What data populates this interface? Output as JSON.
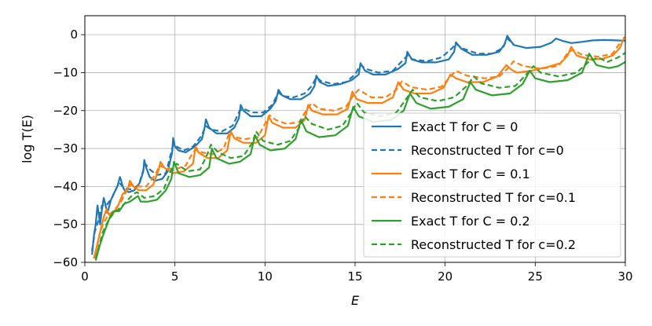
{
  "chart_data": {
    "type": "line",
    "xlabel": "E",
    "ylabel": "log T(E)",
    "xlim": [
      0,
      30
    ],
    "ylim": [
      -60,
      5
    ],
    "xticks": [
      0,
      5,
      10,
      15,
      20,
      25,
      30
    ],
    "yticks": [
      0,
      -10,
      -20,
      -30,
      -40,
      -50,
      -60
    ],
    "xtick_labels": [
      "0",
      "5",
      "10",
      "15",
      "20",
      "25",
      "30"
    ],
    "ytick_labels": [
      "0",
      "−10",
      "−20",
      "−30",
      "−40",
      "−50",
      "−60"
    ],
    "grid": true,
    "legend_position": "lower-right",
    "legend": [
      {
        "key": "exact0",
        "label": "Exact T for C = 0"
      },
      {
        "key": "recon0",
        "label": "Reconstructed T for c=0"
      },
      {
        "key": "exact1",
        "label": "Exact T for C = 0.1"
      },
      {
        "key": "recon1",
        "label": "Reconstructed T for c=0.1"
      },
      {
        "key": "exact2",
        "label": "Exact T for C = 0.2"
      },
      {
        "key": "recon2",
        "label": "Reconstructed T for c=0.2"
      }
    ],
    "colors": {
      "blue": "#1f77b4",
      "orange": "#ff7f0e",
      "green": "#2ca02c"
    },
    "series": [
      {
        "key": "exact0",
        "color": "#1f77b4",
        "dashed": false,
        "x": [
          0.4,
          0.5,
          0.6,
          0.7,
          0.85,
          0.95,
          1.05,
          1.15,
          1.25,
          1.45,
          1.65,
          1.8,
          1.95,
          2.0,
          2.1,
          2.2,
          2.45,
          2.75,
          3.05,
          3.25,
          3.3,
          3.4,
          3.6,
          3.9,
          4.3,
          4.6,
          4.85,
          4.9,
          5.0,
          5.2,
          5.6,
          6.1,
          6.5,
          6.65,
          6.72,
          6.9,
          7.3,
          7.9,
          8.3,
          8.55,
          8.65,
          8.8,
          9.2,
          9.8,
          10.3,
          10.6,
          10.75,
          10.95,
          11.4,
          12.0,
          12.5,
          12.75,
          12.85,
          13.05,
          13.5,
          14.2,
          14.8,
          15.2,
          15.3,
          15.55,
          16.0,
          16.7,
          17.4,
          17.8,
          17.9,
          18.15,
          18.7,
          19.5,
          20.2,
          20.5,
          20.6,
          20.9,
          21.5,
          22.3,
          23.0,
          23.3,
          23.45,
          23.8,
          24.5,
          25.3,
          25.9,
          26.15,
          26.5,
          27.0,
          27.6,
          28.2,
          28.8,
          29.5,
          30.0
        ],
        "y": [
          -58,
          -53,
          -50,
          -45,
          -50,
          -46,
          -43,
          -45,
          -47,
          -43.5,
          -41.5,
          -40,
          -37.5,
          -38.2,
          -40,
          -41,
          -41.5,
          -41,
          -39,
          -36,
          -33,
          -35,
          -37.5,
          -38.5,
          -38,
          -36,
          -31,
          -27.2,
          -29.5,
          -30.5,
          -31,
          -29.5,
          -27.5,
          -24.5,
          -22.3,
          -24.5,
          -26,
          -26,
          -24.5,
          -22,
          -18.5,
          -20,
          -21.5,
          -21.5,
          -19.5,
          -17.5,
          -14.5,
          -16,
          -17,
          -17,
          -15.5,
          -13.5,
          -10.8,
          -12.5,
          -13.5,
          -13,
          -12,
          -10.5,
          -7.5,
          -9.5,
          -10.5,
          -10.5,
          -9,
          -7.5,
          -4.5,
          -6.5,
          -7.3,
          -7.3,
          -6.5,
          -4.5,
          -2,
          -3.7,
          -5.3,
          -5.3,
          -4.5,
          -2.5,
          -0.3,
          -2.7,
          -3.5,
          -3.2,
          -2.1,
          -1,
          -1.6,
          -2.2,
          -1.9,
          -1.5,
          -1.4,
          -1.5,
          -1.6
        ]
      },
      {
        "key": "recon0",
        "color": "#1f77b4",
        "dashed": true,
        "x": [
          0.4,
          0.55,
          0.75,
          0.95,
          1.2,
          1.5,
          1.9,
          2.2,
          2.6,
          3.0,
          3.35,
          3.6,
          4.0,
          4.5,
          4.9,
          5.1,
          5.5,
          6.0,
          6.5,
          6.7,
          7.0,
          7.6,
          8.2,
          8.6,
          8.8,
          9.3,
          9.9,
          10.4,
          10.75,
          11.0,
          11.6,
          12.2,
          12.6,
          12.85,
          13.1,
          13.8,
          14.5,
          15.0,
          15.3,
          15.6,
          16.3,
          17.1,
          17.7,
          17.9,
          18.2,
          19.0,
          19.8,
          20.4,
          20.6,
          20.9,
          21.8,
          22.6,
          23.2,
          23.45,
          23.8
        ],
        "y": [
          -57,
          -52,
          -49,
          -45,
          -45,
          -43,
          -39,
          -40.5,
          -40.8,
          -39.5,
          -34,
          -35.5,
          -37,
          -36.5,
          -29,
          -29.5,
          -30.5,
          -29.5,
          -26.5,
          -24,
          -25,
          -25.5,
          -24,
          -20,
          -19.5,
          -20.5,
          -20.5,
          -18.5,
          -15.2,
          -16.2,
          -16.5,
          -15.5,
          -13.5,
          -11.2,
          -12.2,
          -13,
          -12.5,
          -10.5,
          -8,
          -9,
          -10,
          -9.5,
          -6.5,
          -5.5,
          -6.5,
          -7,
          -6,
          -3.5,
          -2.3,
          -3.5,
          -5,
          -5,
          -3.5,
          -1,
          -2.5
        ]
      },
      {
        "key": "exact1",
        "color": "#ff7f0e",
        "dashed": false,
        "x": [
          0.5,
          0.7,
          0.9,
          1.05,
          1.2,
          1.35,
          1.6,
          1.85,
          2.1,
          2.4,
          2.5,
          2.7,
          3.0,
          3.4,
          3.8,
          4.1,
          4.2,
          4.4,
          4.9,
          5.5,
          6.0,
          6.15,
          6.3,
          6.8,
          7.4,
          7.9,
          8.1,
          8.3,
          8.8,
          9.5,
          10.0,
          10.2,
          10.4,
          11.0,
          11.7,
          12.2,
          12.4,
          12.6,
          13.2,
          14.0,
          14.6,
          14.85,
          15.1,
          15.7,
          16.5,
          17.1,
          17.4,
          17.7,
          18.3,
          19.2,
          19.9,
          20.3,
          20.6,
          21.2,
          22.1,
          22.9,
          23.4,
          23.7,
          24.0,
          24.8,
          25.7,
          26.4,
          26.8,
          27.0,
          27.3,
          28.0,
          28.7,
          29.3,
          29.7,
          29.95
        ],
        "y": [
          -59,
          -55,
          -51,
          -48,
          -46,
          -47.5,
          -47,
          -45,
          -42,
          -40.5,
          -38.5,
          -40,
          -41,
          -41,
          -39.5,
          -35.5,
          -33.5,
          -35,
          -36.5,
          -36,
          -34,
          -29.5,
          -31,
          -32.5,
          -32.5,
          -30.5,
          -25.5,
          -27.3,
          -28.5,
          -28.5,
          -26.5,
          -21.5,
          -23.2,
          -24.5,
          -24.5,
          -22.5,
          -18.5,
          -20,
          -21,
          -21,
          -19.5,
          -15,
          -17,
          -18,
          -18,
          -16.5,
          -12.5,
          -14.5,
          -15.5,
          -15.5,
          -14,
          -10.5,
          -11.5,
          -12.5,
          -12.5,
          -11,
          -8,
          -9.3,
          -10,
          -9.5,
          -8.5,
          -7.5,
          -5.5,
          -3.2,
          -5.5,
          -6.5,
          -6.4,
          -5.5,
          -3.5,
          -0.5
        ]
      },
      {
        "key": "recon1",
        "color": "#ff7f0e",
        "dashed": true,
        "x": [
          0.6,
          0.8,
          1.0,
          1.3,
          1.6,
          2.0,
          2.4,
          2.55,
          2.9,
          3.4,
          3.9,
          4.15,
          4.4,
          5.0,
          5.6,
          6.0,
          6.15,
          6.5,
          7.1,
          7.7,
          8.05,
          8.3,
          8.9,
          9.6,
          10.0,
          10.25,
          10.6,
          11.2,
          11.9,
          12.35,
          12.6,
          13.0,
          13.8,
          14.5,
          14.9,
          15.2,
          15.9,
          16.7,
          17.3,
          17.6,
          18.1,
          19.0,
          19.8,
          20.3,
          20.6,
          21.2,
          22.2,
          23.0,
          23.5,
          23.8,
          24.3,
          25.3,
          26.3,
          26.85,
          27.1,
          27.6,
          28.5,
          29.3,
          29.8
        ],
        "y": [
          -58,
          -53,
          -50,
          -47.5,
          -46.5,
          -44,
          -40.5,
          -39.5,
          -40,
          -40,
          -37,
          -34.5,
          -35,
          -35.5,
          -34.5,
          -31,
          -30.3,
          -31,
          -31.5,
          -30,
          -25.5,
          -27,
          -27.5,
          -27,
          -23.5,
          -21.2,
          -22.5,
          -23.5,
          -23,
          -19.5,
          -18,
          -19.5,
          -20,
          -19,
          -16,
          -14.5,
          -16.5,
          -16.5,
          -14.5,
          -12.3,
          -13.8,
          -14.5,
          -13.7,
          -11,
          -9.5,
          -10.8,
          -11.5,
          -11,
          -8.8,
          -7,
          -8.2,
          -9,
          -8.2,
          -4.5,
          -4,
          -5.3,
          -5.8,
          -5,
          -1.5
        ]
      },
      {
        "key": "exact2",
        "color": "#2ca02c",
        "dashed": false,
        "x": [
          0.6,
          0.8,
          1.0,
          1.2,
          1.4,
          1.6,
          1.9,
          2.2,
          2.5,
          2.8,
          2.95,
          3.1,
          3.5,
          4.0,
          4.5,
          4.8,
          4.95,
          5.2,
          5.8,
          6.4,
          6.9,
          7.05,
          7.3,
          8.0,
          8.6,
          9.2,
          9.45,
          9.7,
          10.3,
          11.1,
          11.7,
          12.0,
          12.3,
          13.0,
          13.9,
          14.6,
          14.9,
          15.2,
          16.0,
          17.0,
          17.7,
          18.05,
          18.4,
          19.2,
          20.2,
          21.0,
          21.4,
          21.7,
          22.6,
          23.6,
          24.3,
          24.7,
          25.0,
          25.8,
          26.8,
          27.6,
          28.0,
          28.4,
          29.1,
          29.6,
          30.0
        ],
        "y": [
          -59.5,
          -56,
          -53,
          -50.5,
          -48,
          -46.5,
          -46.5,
          -44.5,
          -44,
          -43,
          -42.5,
          -44,
          -44,
          -43.5,
          -41,
          -38,
          -33.5,
          -36.5,
          -37.5,
          -37,
          -35,
          -30,
          -32.5,
          -34,
          -33.5,
          -31.5,
          -26.5,
          -29,
          -30.5,
          -30,
          -27.5,
          -22.5,
          -25.5,
          -27,
          -26.5,
          -24,
          -19,
          -21.5,
          -23,
          -22.5,
          -20,
          -15.5,
          -18,
          -19.5,
          -19,
          -17,
          -12.5,
          -14.5,
          -16,
          -15.5,
          -13,
          -9.5,
          -11.5,
          -12.5,
          -12,
          -10,
          -5,
          -8,
          -8.8,
          -8.3,
          -7.2
        ]
      },
      {
        "key": "recon2",
        "color": "#2ca02c",
        "dashed": true,
        "x": [
          0.6,
          0.8,
          1.0,
          1.3,
          1.6,
          2.0,
          2.4,
          2.7,
          2.9,
          3.3,
          3.9,
          4.4,
          4.8,
          5.1,
          5.7,
          6.4,
          6.8,
          7.0,
          7.4,
          8.1,
          8.8,
          9.3,
          9.5,
          9.9,
          10.7,
          11.4,
          11.9,
          12.2,
          12.6,
          13.5,
          14.3,
          14.8,
          15.1,
          15.5,
          16.4,
          17.3,
          17.9,
          18.2,
          18.6,
          19.6,
          20.5,
          21.2,
          21.6,
          22.0,
          23.0,
          23.9,
          24.5,
          24.9,
          25.3,
          26.3,
          27.3,
          28.0,
          28.5,
          29.0,
          29.6,
          30.0
        ],
        "y": [
          -59,
          -55.5,
          -52,
          -49,
          -47,
          -45.5,
          -43.5,
          -42,
          -41.5,
          -43,
          -42.5,
          -40.5,
          -35.5,
          -34,
          -36,
          -35.5,
          -31.5,
          -29,
          -31,
          -32.5,
          -32,
          -28.5,
          -25.5,
          -28,
          -29,
          -28,
          -24.5,
          -21.5,
          -23.5,
          -25,
          -24,
          -20.5,
          -18,
          -20.5,
          -21.5,
          -20.5,
          -16.5,
          -14.5,
          -16.5,
          -17.5,
          -16.5,
          -13.5,
          -11,
          -12.8,
          -14,
          -13.5,
          -10.5,
          -8.3,
          -10,
          -11,
          -10,
          -7,
          -6,
          -7.2,
          -6,
          -4.8
        ]
      }
    ]
  }
}
